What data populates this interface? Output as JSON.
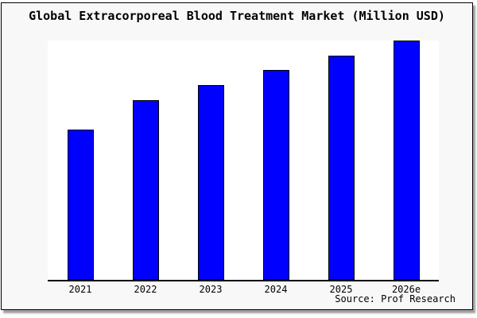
{
  "title": "Global Extracorporeal Blood Treatment Market (Million USD)",
  "source_label": "Source: Prof Research",
  "colors": {
    "bar_fill": "#0000ff",
    "bar_edge": "#000000",
    "figure_background": "#f8f8f8",
    "plot_background": "#ffffff",
    "figure_border": "#000000",
    "text": "#000000"
  },
  "chart_data": {
    "type": "bar",
    "title": "Global Extracorporeal Blood Treatment Market (Million USD)",
    "categories": [
      "2021",
      "2022",
      "2023",
      "2024",
      "2025",
      "2026e"
    ],
    "values": [
      62.8,
      75.1,
      81.4,
      87.7,
      93.7,
      100
    ],
    "value_basis": "percent of tallest bar (no y-axis scale shown in figure)",
    "xlabel": "",
    "ylabel": "",
    "ylim": [
      0,
      100
    ],
    "grid": false,
    "legend": false,
    "y_axis_shown": false,
    "source": "Source: Prof Research"
  }
}
